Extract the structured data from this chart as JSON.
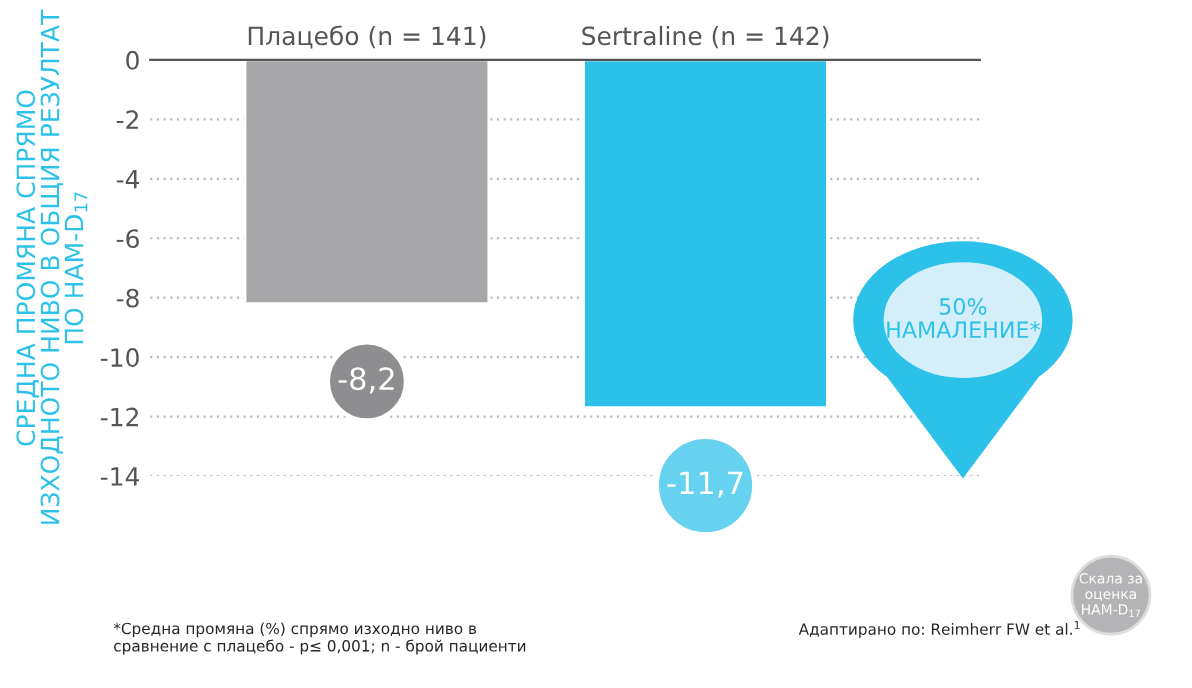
{
  "chart_data": {
    "type": "bar",
    "categories": [
      "Плацебо (n = 141)",
      "Sertraline (n = 142)"
    ],
    "values": [
      -8.2,
      -11.7
    ],
    "colors": [
      "#a7a7a9",
      "#2cc1e9"
    ],
    "value_labels": [
      "-8,2",
      "-11,7"
    ],
    "ylabel": "СРЕДНА ПРОМЯНА СПРЯМО\nИЗХОДНОТО НИВО В ОБЩИЯ РЕЗУЛТАТ\nПО HAM-D$_{17}$",
    "ylim": [
      -14,
      0
    ],
    "yticks": [
      0,
      -2,
      -4,
      -6,
      -8,
      -10,
      -12,
      -14
    ],
    "grid": "y",
    "annotations": [
      "50%\nНАМАЛЕНИЕ*",
      "*Средна промяна (%) спрямо изходно ниво в\nсравнение с плацебо - p≤ 0,001; n - брой пациенти",
      "Адаптирано по: Reimherr FW et al.$^{1}$",
      "Скала за\nоценка\nHAM-D$_{17}$"
    ]
  }
}
